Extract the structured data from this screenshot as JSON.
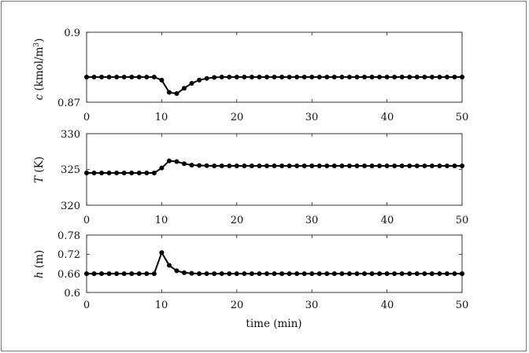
{
  "chart_data": [
    {
      "type": "line",
      "ylabel_var": "c",
      "ylabel_unit": "(kmol/m",
      "ylabel_unit_sup": "3",
      "ylabel_unit_close": ")",
      "ylim": [
        0.87,
        0.9
      ],
      "yticks": [
        "0.87",
        "0.9"
      ],
      "ytick_values": [
        0.87,
        0.9
      ],
      "xlim": [
        0,
        50
      ],
      "xticks": [
        "0",
        "10",
        "20",
        "30",
        "40",
        "50"
      ],
      "xtick_values": [
        0,
        10,
        20,
        30,
        40,
        50
      ],
      "color": "#000000",
      "x": [
        0,
        1,
        2,
        3,
        4,
        5,
        6,
        7,
        8,
        9,
        10,
        11,
        12,
        13,
        14,
        15,
        16,
        17,
        18,
        19,
        20,
        21,
        22,
        23,
        24,
        25,
        26,
        27,
        28,
        29,
        30,
        31,
        32,
        33,
        34,
        35,
        36,
        37,
        38,
        39,
        40,
        41,
        42,
        43,
        44,
        45,
        46,
        47,
        48,
        49,
        50
      ],
      "y": [
        0.8808,
        0.8808,
        0.8808,
        0.8808,
        0.8808,
        0.8808,
        0.8808,
        0.8808,
        0.8808,
        0.8808,
        0.8795,
        0.8742,
        0.8737,
        0.876,
        0.8781,
        0.8795,
        0.8802,
        0.8806,
        0.8808,
        0.8808,
        0.8808,
        0.8808,
        0.8808,
        0.8808,
        0.8808,
        0.8808,
        0.8808,
        0.8808,
        0.8808,
        0.8808,
        0.8808,
        0.8808,
        0.8808,
        0.8808,
        0.8808,
        0.8808,
        0.8808,
        0.8808,
        0.8808,
        0.8808,
        0.8808,
        0.8808,
        0.8808,
        0.8808,
        0.8808,
        0.8808,
        0.8808,
        0.8808,
        0.8808,
        0.8808,
        0.8808
      ]
    },
    {
      "type": "line",
      "ylabel_var": "T",
      "ylabel_unit": "(K)",
      "ylim": [
        320,
        330
      ],
      "yticks": [
        "320",
        "325",
        "330"
      ],
      "ytick_values": [
        320,
        325,
        330
      ],
      "xlim": [
        0,
        50
      ],
      "xticks": [
        "0",
        "10",
        "20",
        "30",
        "40",
        "50"
      ],
      "xtick_values": [
        0,
        10,
        20,
        30,
        40,
        50
      ],
      "color": "#000000",
      "x": [
        0,
        1,
        2,
        3,
        4,
        5,
        6,
        7,
        8,
        9,
        10,
        11,
        12,
        13,
        14,
        15,
        16,
        17,
        18,
        19,
        20,
        21,
        22,
        23,
        24,
        25,
        26,
        27,
        28,
        29,
        30,
        31,
        32,
        33,
        34,
        35,
        36,
        37,
        38,
        39,
        40,
        41,
        42,
        43,
        44,
        45,
        46,
        47,
        48,
        49,
        50
      ],
      "y": [
        324.5,
        324.5,
        324.5,
        324.5,
        324.5,
        324.5,
        324.5,
        324.5,
        324.5,
        324.5,
        325.2,
        326.2,
        326.1,
        325.8,
        325.6,
        325.55,
        325.52,
        325.5,
        325.5,
        325.5,
        325.5,
        325.5,
        325.5,
        325.5,
        325.5,
        325.5,
        325.5,
        325.5,
        325.5,
        325.5,
        325.5,
        325.5,
        325.5,
        325.5,
        325.5,
        325.5,
        325.5,
        325.5,
        325.5,
        325.5,
        325.5,
        325.5,
        325.5,
        325.5,
        325.5,
        325.5,
        325.5,
        325.5,
        325.5,
        325.5,
        325.5
      ]
    },
    {
      "type": "line",
      "ylabel_var": "h",
      "ylabel_unit": "(m)",
      "xlabel": "time (min)",
      "ylim": [
        0.6,
        0.78
      ],
      "yticks": [
        "0.6",
        "0.66",
        "0.72",
        "0.78"
      ],
      "ytick_values": [
        0.6,
        0.66,
        0.72,
        0.78
      ],
      "xlim": [
        0,
        50
      ],
      "xticks": [
        "0",
        "10",
        "20",
        "30",
        "40",
        "50"
      ],
      "xtick_values": [
        0,
        10,
        20,
        30,
        40,
        50
      ],
      "color": "#000000",
      "x": [
        0,
        1,
        2,
        3,
        4,
        5,
        6,
        7,
        8,
        9,
        10,
        11,
        12,
        13,
        14,
        15,
        16,
        17,
        18,
        19,
        20,
        21,
        22,
        23,
        24,
        25,
        26,
        27,
        28,
        29,
        30,
        31,
        32,
        33,
        34,
        35,
        36,
        37,
        38,
        39,
        40,
        41,
        42,
        43,
        44,
        45,
        46,
        47,
        48,
        49,
        50
      ],
      "y": [
        0.659,
        0.659,
        0.659,
        0.659,
        0.659,
        0.659,
        0.659,
        0.659,
        0.659,
        0.659,
        0.725,
        0.685,
        0.668,
        0.662,
        0.66,
        0.659,
        0.659,
        0.659,
        0.659,
        0.659,
        0.659,
        0.659,
        0.659,
        0.659,
        0.659,
        0.659,
        0.659,
        0.659,
        0.659,
        0.659,
        0.659,
        0.659,
        0.659,
        0.659,
        0.659,
        0.659,
        0.659,
        0.659,
        0.659,
        0.659,
        0.659,
        0.659,
        0.659,
        0.659,
        0.659,
        0.659,
        0.659,
        0.659,
        0.659,
        0.659,
        0.659
      ]
    }
  ]
}
